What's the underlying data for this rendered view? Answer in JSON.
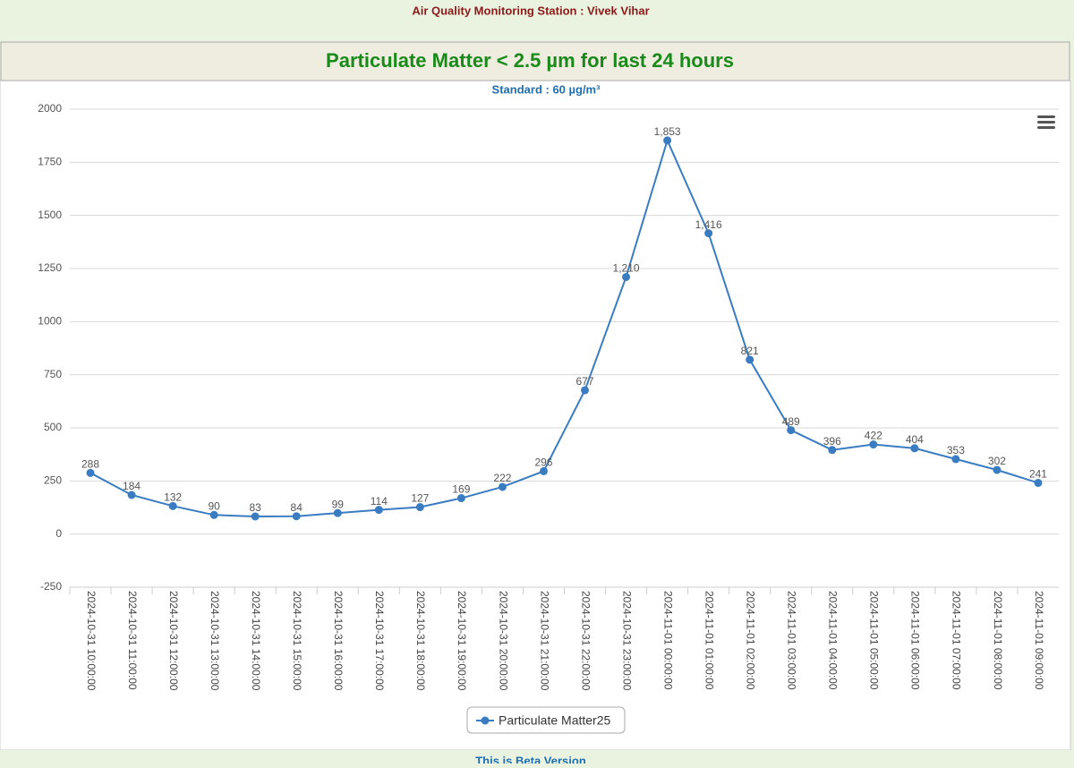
{
  "station": "Air Quality Monitoring Station : Vivek Vihar",
  "footer": "This is Beta Version",
  "chart_data": {
    "type": "line",
    "title": "Particulate Matter < 2.5 µm for last 24 hours",
    "subtitle": "Standard : 60 µg/m³",
    "categories": [
      "2024-10-31 10:00:00",
      "2024-10-31 11:00:00",
      "2024-10-31 12:00:00",
      "2024-10-31 13:00:00",
      "2024-10-31 14:00:00",
      "2024-10-31 15:00:00",
      "2024-10-31 16:00:00",
      "2024-10-31 17:00:00",
      "2024-10-31 18:00:00",
      "2024-10-31 19:00:00",
      "2024-10-31 20:00:00",
      "2024-10-31 21:00:00",
      "2024-10-31 22:00:00",
      "2024-10-31 23:00:00",
      "2024-11-01 00:00:00",
      "2024-11-01 01:00:00",
      "2024-11-01 02:00:00",
      "2024-11-01 03:00:00",
      "2024-11-01 04:00:00",
      "2024-11-01 05:00:00",
      "2024-11-01 06:00:00",
      "2024-11-01 07:00:00",
      "2024-11-01 08:00:00",
      "2024-11-01 09:00:00"
    ],
    "series": [
      {
        "name": "Particulate Matter25",
        "color": "#3a7cc2",
        "values": [
          288,
          184,
          132,
          90,
          83,
          84,
          99,
          114,
          127,
          169,
          222,
          296,
          677,
          1210,
          1853,
          1416,
          821,
          489,
          396,
          422,
          404,
          353,
          302,
          241
        ],
        "value_labels": [
          "288",
          "184",
          "132",
          "90",
          "83",
          "84",
          "99",
          "114",
          "127",
          "169",
          "222",
          "296",
          "677",
          "1,210",
          "1,853",
          "1,416",
          "821",
          "489",
          "396",
          "422",
          "404",
          "353",
          "302",
          "241"
        ]
      }
    ],
    "ylim": [
      -250,
      2000
    ],
    "yticks": [
      -250,
      0,
      250,
      500,
      750,
      1000,
      1250,
      1500,
      1750,
      2000
    ],
    "grid": true
  }
}
